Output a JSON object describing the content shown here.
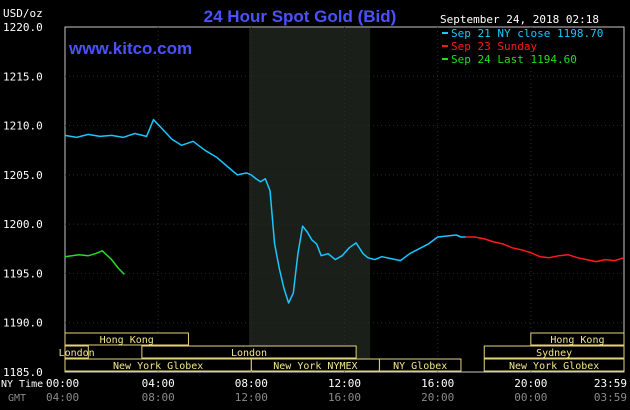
{
  "chart_data": {
    "type": "line",
    "title": "24 Hour Spot Gold (Bid)",
    "watermark": "www.kitco.com",
    "ylabel": "USD/oz",
    "timestamp": "September 24, 2018 02:18",
    "ylim": [
      1185.0,
      1220.0
    ],
    "yticks": [
      "1220.0",
      "1215.0",
      "1210.0",
      "1205.0",
      "1200.0",
      "1195.0",
      "1190.0",
      "1185.0"
    ],
    "xlim": [
      0,
      24
    ],
    "xticks_ny": [
      "00:00",
      "04:00",
      "08:00",
      "12:00",
      "16:00",
      "20:00",
      "23:59"
    ],
    "xticks_gmt": [
      "04:00",
      "08:00",
      "12:00",
      "16:00",
      "20:00",
      "00:00",
      "03:59"
    ],
    "x_row_labels": [
      "NY Time",
      "GMT"
    ],
    "shaded_region": [
      7.9,
      13.1
    ],
    "legend": [
      {
        "label": "Sep 21 NY close 1198.70",
        "color": "#19c6ff"
      },
      {
        "label": "Sep 23 Sunday",
        "color": "#ff1a1a"
      },
      {
        "label": "Sep 24 Last 1194.60",
        "color": "#22dd22"
      }
    ],
    "markets": [
      {
        "name": "Hong Kong",
        "start": 0,
        "end": 5.3,
        "row": 0
      },
      {
        "name": "London",
        "start": 0,
        "end": 1.0,
        "row": 1
      },
      {
        "name": "London",
        "start": 3.3,
        "end": 12.5,
        "row": 1
      },
      {
        "name": "New York Globex",
        "start": 0,
        "end": 8.0,
        "row": 2
      },
      {
        "name": "New York NYMEX",
        "start": 8.0,
        "end": 13.5,
        "row": 2
      },
      {
        "name": "NY Globex",
        "start": 13.5,
        "end": 17.0,
        "row": 2
      },
      {
        "name": "Hong Kong",
        "start": 20.0,
        "end": 24.0,
        "row": 0
      },
      {
        "name": "Sydney",
        "start": 18.0,
        "end": 24.0,
        "row": 1
      },
      {
        "name": "New York Globex",
        "start": 18.0,
        "end": 24.0,
        "row": 2
      }
    ],
    "series": [
      {
        "name": "Sep 21 NY close 1198.70",
        "color": "#19c6ff",
        "x": [
          0,
          0.5,
          1.0,
          1.5,
          2.0,
          2.5,
          3.0,
          3.5,
          3.8,
          4.2,
          4.6,
          5.0,
          5.5,
          6.0,
          6.5,
          7.0,
          7.4,
          7.8,
          8.0,
          8.2,
          8.4,
          8.6,
          8.8,
          9.0,
          9.2,
          9.4,
          9.6,
          9.8,
          10.0,
          10.2,
          10.4,
          10.6,
          10.8,
          11.0,
          11.3,
          11.6,
          11.9,
          12.2,
          12.5,
          12.8,
          13.0,
          13.3,
          13.6,
          14.0,
          14.4,
          14.8,
          15.2,
          15.6,
          16.0,
          16.4,
          16.8,
          17.0,
          17.2
        ],
        "y": [
          1209.0,
          1208.8,
          1209.1,
          1208.9,
          1209.0,
          1208.8,
          1209.2,
          1208.9,
          1210.6,
          1209.6,
          1208.6,
          1208.0,
          1208.4,
          1207.5,
          1206.8,
          1205.8,
          1205.0,
          1205.2,
          1205.0,
          1204.6,
          1204.3,
          1204.6,
          1203.4,
          1198.0,
          1195.5,
          1193.5,
          1192.0,
          1193.0,
          1197.0,
          1199.8,
          1199.2,
          1198.4,
          1198.0,
          1196.8,
          1197.0,
          1196.4,
          1196.8,
          1197.6,
          1198.1,
          1197.0,
          1196.6,
          1196.4,
          1196.7,
          1196.5,
          1196.3,
          1197.0,
          1197.5,
          1198.0,
          1198.7,
          1198.8,
          1198.9,
          1198.7,
          1198.7
        ]
      },
      {
        "name": "Sep 23 Sunday",
        "color": "#ff1a1a",
        "x": [
          17.2,
          17.6,
          18.0,
          18.4,
          18.8,
          19.2,
          19.6,
          20.0,
          20.4,
          20.8,
          21.2,
          21.6,
          22.0,
          22.4,
          22.8,
          23.2,
          23.6,
          24.0
        ],
        "y": [
          1198.7,
          1198.7,
          1198.5,
          1198.2,
          1198.0,
          1197.6,
          1197.4,
          1197.1,
          1196.7,
          1196.6,
          1196.8,
          1196.9,
          1196.6,
          1196.4,
          1196.2,
          1196.4,
          1196.3,
          1196.6
        ]
      },
      {
        "name": "Sep 24 Last 1194.60",
        "color": "#22dd22",
        "x": [
          0,
          0.3,
          0.6,
          1.0,
          1.3,
          1.6,
          2.0,
          2.3,
          2.55
        ],
        "y": [
          1196.7,
          1196.8,
          1196.9,
          1196.8,
          1197.0,
          1197.3,
          1196.4,
          1195.5,
          1194.9
        ]
      }
    ]
  }
}
